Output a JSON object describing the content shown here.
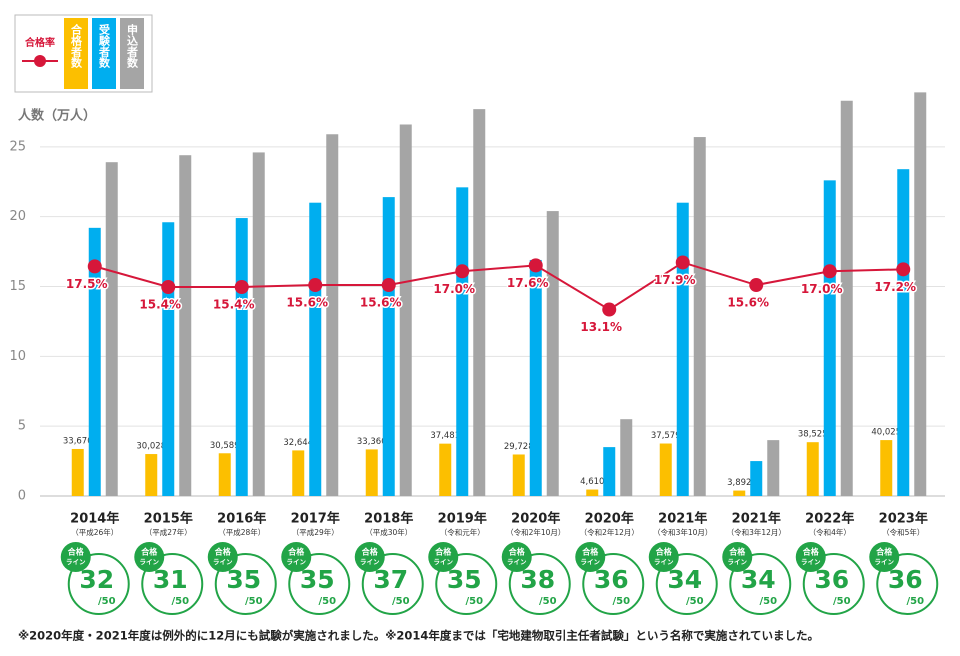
{
  "chart_data": {
    "type": "bar",
    "y_axis_label": "人数（万人）",
    "categories": [
      "2014年",
      "2015年",
      "2016年",
      "2017年",
      "2018年",
      "2019年",
      "2020年",
      "2020年",
      "2021年",
      "2021年",
      "2022年",
      "2023年"
    ],
    "category_notes": [
      "（平成26年）",
      "（平成27年）",
      "（平成28年）",
      "（平成29年）",
      "（平成30年）",
      "（令和元年）",
      "（令和2年10月）",
      "（令和2年12月）",
      "（令和3年10月）",
      "（令和3年12月）",
      "（令和4年）",
      "（令和5年）"
    ],
    "ylim": [
      0,
      30
    ],
    "yticks": [
      0,
      5,
      10,
      15,
      20,
      25
    ],
    "grid": true,
    "series": [
      {
        "name": "合格者数",
        "color": "#fcbf00",
        "values": [
          3.367,
          3.0028,
          3.0589,
          3.2644,
          3.336,
          3.7481,
          2.9728,
          0.461,
          3.7579,
          0.3892,
          3.8525,
          4.0025
        ],
        "value_labels": [
          "33,670",
          "30,028",
          "30,589",
          "32,644",
          "33,360",
          "37,481",
          "29,728",
          "4,610",
          "37,579",
          "3,892",
          "38,525",
          "40,025"
        ]
      },
      {
        "name": "受験者数",
        "color": "#00aeef",
        "values": [
          19.2,
          19.6,
          19.9,
          21.0,
          21.4,
          22.1,
          16.9,
          3.5,
          21.0,
          2.5,
          22.6,
          23.4
        ]
      },
      {
        "name": "申込者数",
        "color": "#a5a5a5",
        "values": [
          23.9,
          24.4,
          24.6,
          25.9,
          26.6,
          27.7,
          20.4,
          5.5,
          25.7,
          4.0,
          28.3,
          28.9
        ]
      },
      {
        "name": "合格率",
        "color": "#d6173a",
        "type": "line",
        "axis": "y2",
        "values": [
          17.5,
          15.4,
          15.4,
          15.6,
          15.6,
          17.0,
          17.6,
          13.1,
          17.9,
          15.6,
          17.0,
          17.2
        ],
        "value_labels": [
          "17.5%",
          "15.4%",
          "15.4%",
          "15.6%",
          "15.6%",
          "17.0%",
          "17.6%",
          "13.1%",
          "17.9%",
          "15.6%",
          "17.0%",
          "17.2%"
        ]
      }
    ],
    "y2lim": [
      -5.9,
      36.8
    ],
    "pass_line_badge": [
      "合格",
      "ライン"
    ],
    "pass_lines": [
      32,
      31,
      35,
      35,
      37,
      35,
      38,
      36,
      34,
      34,
      36,
      36
    ],
    "pass_line_max_label": "/50",
    "footnote": "※2020年度・2021年度は例外的に12月にも試験が実施されました。※2014年度までは「宅地建物取引主任者試験」という名称で実施されていました。"
  }
}
